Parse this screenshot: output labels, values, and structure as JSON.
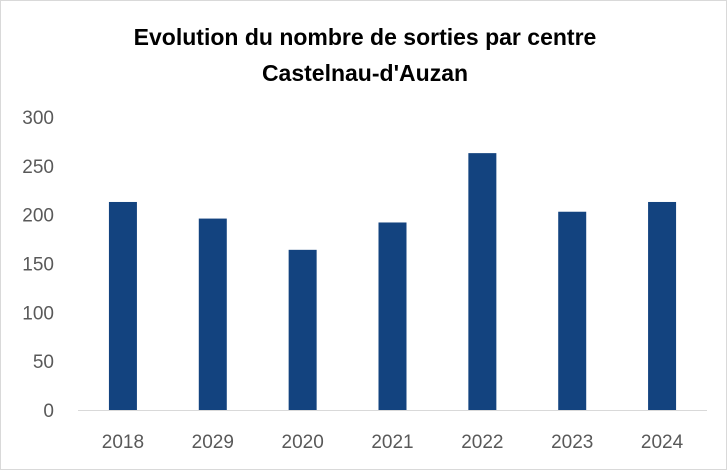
{
  "chart_data": {
    "type": "bar",
    "title": "Evolution du nombre de sorties par centre",
    "subtitle": "Castelnau-d'Auzan",
    "categories": [
      "2018",
      "2029",
      "2020",
      "2021",
      "2022",
      "2023",
      "2024"
    ],
    "values": [
      213,
      196,
      164,
      192,
      263,
      203,
      213
    ],
    "ylim": [
      0,
      300
    ],
    "yticks": [
      0,
      50,
      100,
      150,
      200,
      250,
      300
    ],
    "grid": false,
    "legend": "none",
    "colors": {
      "bar": "#13437f",
      "axis": "#d9d9d9"
    }
  }
}
